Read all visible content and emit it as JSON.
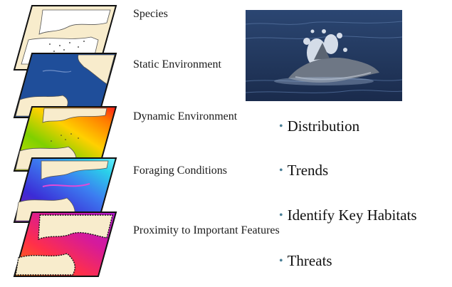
{
  "layers": [
    {
      "label": "Species",
      "map_theme": "species-points"
    },
    {
      "label": "Static Environment",
      "map_theme": "bathymetry"
    },
    {
      "label": "Dynamic Environment",
      "map_theme": "sea-surface-gradient"
    },
    {
      "label": "Foraging Conditions",
      "map_theme": "prey-density"
    },
    {
      "label": "Proximity to Important Features",
      "map_theme": "distance-to-features"
    }
  ],
  "photo": {
    "subject": "dolphin-photo"
  },
  "outcomes": [
    {
      "bullet": "•",
      "label": "Distribution"
    },
    {
      "bullet": "•",
      "label": "Trends"
    },
    {
      "bullet": "•",
      "label": "Identify Key Habitats"
    },
    {
      "bullet": "•",
      "label": "Threats"
    }
  ],
  "colors": {
    "land": "#f8eccc",
    "frame": "#111111",
    "ocean_blue": "#1f4e9a",
    "bullet": "#4a7f96"
  }
}
